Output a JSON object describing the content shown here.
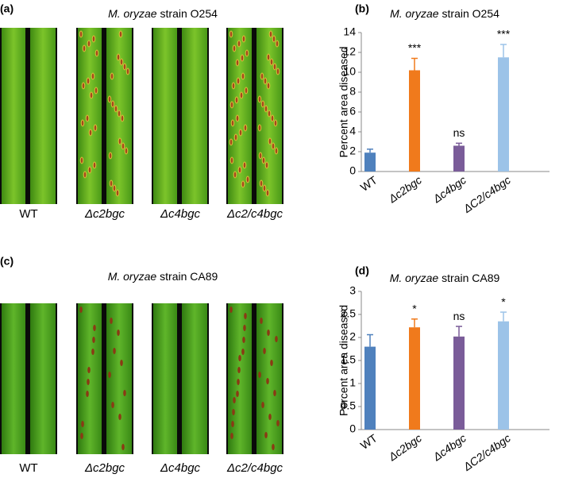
{
  "panels": [
    {
      "label": "(a)",
      "title_italic": "M. oryzae",
      "title": "strain O254",
      "captions": [
        "WT",
        "Δc2bgc",
        "Δc4bgc",
        "Δc2/c4bgc"
      ]
    },
    {
      "label": "(c)",
      "title_italic": "M. oryzae",
      "title": "strain CA89",
      "captions": [
        "WT",
        "Δc2bgc",
        "Δc4bgc",
        "Δc2/c4bgc"
      ]
    }
  ],
  "chart_data": [
    {
      "type": "bar",
      "label": "(b)",
      "title_italic": "M. oryzae",
      "title": "strain O254",
      "y_label": "Percent area diseased",
      "categories": [
        "WT",
        "Δc2bgc",
        "Δc4bgc",
        "ΔC2/c4bgc"
      ],
      "values": [
        1.9,
        10.2,
        2.6,
        11.5
      ],
      "errors": [
        0.35,
        1.2,
        0.25,
        1.3
      ],
      "colors": [
        "#4f81bd",
        "#f07a1c",
        "#7a5c99",
        "#9cc3e8"
      ],
      "annotations": [
        null,
        "***",
        "ns",
        "***"
      ],
      "ylim": [
        0,
        14
      ],
      "yticks": [
        0,
        2,
        4,
        6,
        8,
        10,
        12,
        14
      ]
    },
    {
      "type": "bar",
      "label": "(d)",
      "title_italic": "M. oryzae",
      "title": "strain CA89",
      "y_label": "Percent area diseased",
      "categories": [
        "WT",
        "Δc2bgc",
        "Δc4bgc",
        "ΔC2/c4bgc"
      ],
      "values": [
        1.8,
        2.22,
        2.02,
        2.35
      ],
      "errors": [
        0.26,
        0.18,
        0.22,
        0.2
      ],
      "colors": [
        "#4f81bd",
        "#f07a1c",
        "#7a5c99",
        "#9cc3e8"
      ],
      "annotations": [
        null,
        "*",
        "ns",
        "*"
      ],
      "ylim": [
        0,
        3
      ],
      "yticks": [
        0,
        0.5,
        1,
        1.5,
        2,
        2.5,
        3
      ]
    }
  ]
}
